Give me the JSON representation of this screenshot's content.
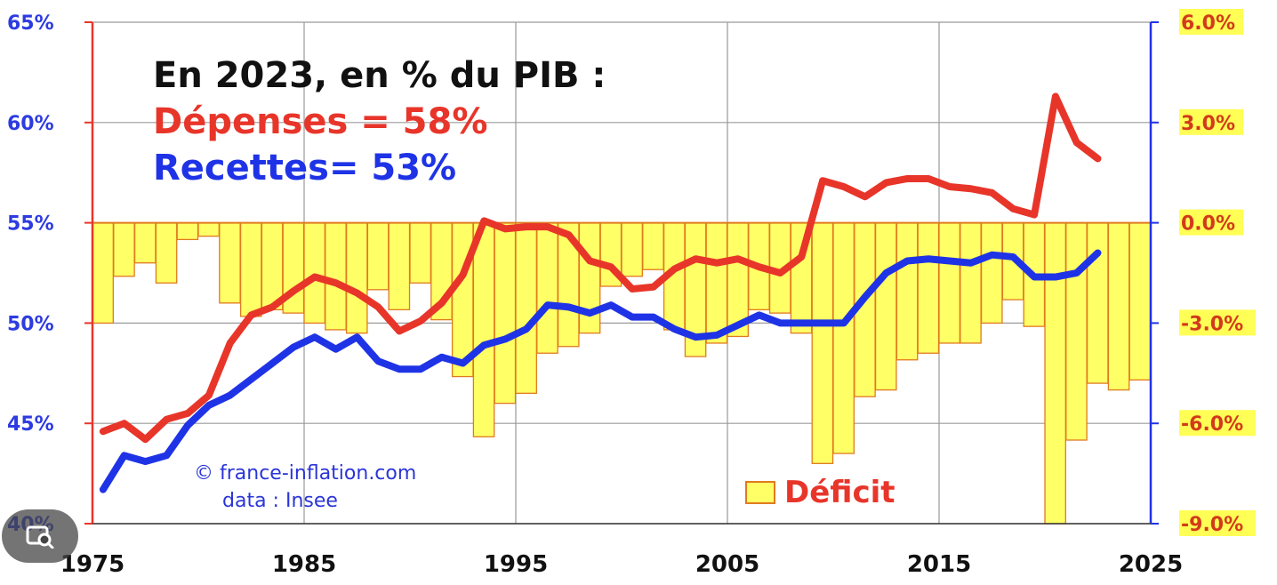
{
  "colors": {
    "depenses": "#e8352a",
    "recettes": "#1f33e6",
    "deficit_fill": "#ffff66",
    "deficit_stroke": "#e07a1f",
    "left_axis": "#e8352a",
    "right_axis": "#1f33e6",
    "left_tick_text": "#2d3be0",
    "right_tick_text": "#d23a1b",
    "right_tick_bg": "#ffff55",
    "credit": "#2a35d8"
  },
  "annotation": {
    "title": "En 2023, en % du PIB :",
    "depenses": "Dépenses = 58%",
    "recettes": "Recettes= 53%"
  },
  "credit": {
    "line1": "© france-inflation.com",
    "line2": "data : Insee"
  },
  "legend": {
    "label": "Déficit"
  },
  "overlay_icon": "image-search-icon",
  "chart_data": {
    "type": "line+bar",
    "x_axis": {
      "range": [
        1975,
        2025
      ],
      "ticks": [
        "1975",
        "1985",
        "1995",
        "2005",
        "2015",
        "2025"
      ]
    },
    "y_left": {
      "range": [
        40,
        65
      ],
      "ticks": [
        "40%",
        "45%",
        "50%",
        "55%",
        "60%",
        "65%"
      ]
    },
    "y_right": {
      "range": [
        -9,
        6
      ],
      "ticks": [
        "-9.0%",
        "-6.0%",
        "-3.0%",
        "0.0%",
        "3.0%",
        "6.0%"
      ]
    },
    "grid": true,
    "series": [
      {
        "name": "Dépenses",
        "axis": "left",
        "type": "line",
        "x": [
          1975,
          1976,
          1977,
          1978,
          1979,
          1980,
          1981,
          1982,
          1983,
          1984,
          1985,
          1986,
          1987,
          1988,
          1989,
          1990,
          1991,
          1992,
          1993,
          1994,
          1995,
          1996,
          1997,
          1998,
          1999,
          2000,
          2001,
          2002,
          2003,
          2004,
          2005,
          2006,
          2007,
          2008,
          2009,
          2010,
          2011,
          2012,
          2013,
          2014,
          2015,
          2016,
          2017,
          2018,
          2019,
          2020,
          2021,
          2022
        ],
        "values": [
          44.6,
          45.0,
          44.2,
          45.2,
          45.5,
          46.4,
          49.0,
          50.4,
          50.8,
          51.6,
          52.3,
          52.0,
          51.5,
          50.8,
          49.6,
          50.1,
          51.0,
          52.4,
          55.1,
          54.7,
          54.8,
          54.8,
          54.4,
          53.1,
          52.8,
          51.7,
          51.8,
          52.7,
          53.2,
          53.0,
          53.2,
          52.8,
          52.5,
          53.3,
          57.1,
          56.8,
          56.3,
          57.0,
          57.2,
          57.2,
          56.8,
          56.7,
          56.5,
          55.7,
          55.4,
          61.3,
          59.0,
          58.2
        ]
      },
      {
        "name": "Recettes",
        "axis": "left",
        "type": "line",
        "x": [
          1975,
          1976,
          1977,
          1978,
          1979,
          1980,
          1981,
          1982,
          1983,
          1984,
          1985,
          1986,
          1987,
          1988,
          1989,
          1990,
          1991,
          1992,
          1993,
          1994,
          1995,
          1996,
          1997,
          1998,
          1999,
          2000,
          2001,
          2002,
          2003,
          2004,
          2005,
          2006,
          2007,
          2008,
          2009,
          2010,
          2011,
          2012,
          2013,
          2014,
          2015,
          2016,
          2017,
          2018,
          2019,
          2020,
          2021,
          2022
        ],
        "values": [
          41.7,
          43.4,
          43.1,
          43.4,
          44.9,
          45.9,
          46.4,
          47.2,
          48.0,
          48.8,
          49.3,
          48.7,
          49.3,
          48.1,
          47.7,
          47.7,
          48.3,
          48.0,
          48.9,
          49.2,
          49.7,
          50.9,
          50.8,
          50.5,
          50.9,
          50.3,
          50.3,
          49.7,
          49.3,
          49.4,
          49.9,
          50.4,
          50.0,
          50.0,
          50.0,
          50.0,
          51.3,
          52.5,
          53.1,
          53.2,
          53.1,
          53.0,
          53.4,
          53.3,
          52.3,
          52.3,
          52.5,
          53.5
        ]
      },
      {
        "name": "Déficit",
        "axis": "right",
        "type": "bar",
        "x": [
          1975,
          1976,
          1977,
          1978,
          1979,
          1980,
          1981,
          1982,
          1983,
          1984,
          1985,
          1986,
          1987,
          1988,
          1989,
          1990,
          1991,
          1992,
          1993,
          1994,
          1995,
          1996,
          1997,
          1998,
          1999,
          2000,
          2001,
          2002,
          2003,
          2004,
          2005,
          2006,
          2007,
          2008,
          2009,
          2010,
          2011,
          2012,
          2013,
          2014,
          2015,
          2016,
          2017,
          2018,
          2019,
          2020,
          2021,
          2022,
          2023,
          2024
        ],
        "values": [
          -3.0,
          -1.6,
          -1.2,
          -1.8,
          -0.5,
          -0.4,
          -2.4,
          -2.8,
          -2.6,
          -2.7,
          -3.0,
          -3.2,
          -3.3,
          -2.0,
          -2.6,
          -1.8,
          -2.9,
          -4.6,
          -6.4,
          -5.4,
          -5.1,
          -3.9,
          -3.7,
          -3.3,
          -1.9,
          -1.6,
          -1.4,
          -3.2,
          -4.0,
          -3.6,
          -3.4,
          -2.6,
          -2.7,
          -3.3,
          -7.2,
          -6.9,
          -5.2,
          -5.0,
          -4.1,
          -3.9,
          -3.6,
          -3.6,
          -3.0,
          -2.3,
          -3.1,
          -9.0,
          -6.5,
          -4.8,
          -5.0,
          -4.7
        ]
      }
    ]
  }
}
